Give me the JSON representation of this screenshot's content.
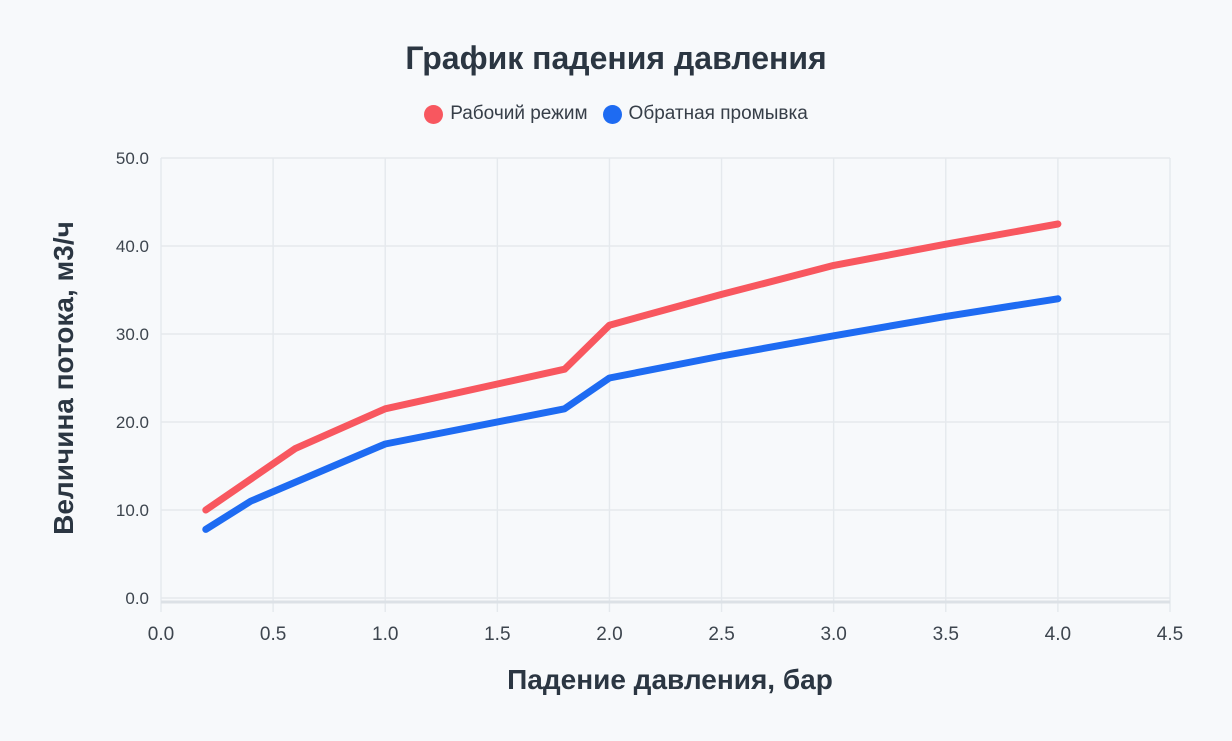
{
  "chart_data": {
    "type": "line",
    "title": "График падения давления",
    "xlabel": "Падение давления, бар",
    "ylabel": "Величина потока, м3/ч",
    "xlim": [
      0,
      4.5
    ],
    "ylim": [
      0,
      50
    ],
    "x_ticks": [
      "0.0",
      "0.5",
      "1.0",
      "1.5",
      "2.0",
      "2.5",
      "3.0",
      "3.5",
      "4.0",
      "4.5"
    ],
    "y_ticks": [
      "0.0",
      "10.0",
      "20.0",
      "30.0",
      "40.0",
      "50.0"
    ],
    "grid": true,
    "legend_position": "top-center",
    "series": [
      {
        "name": "Рабочий режим",
        "color": "#f8575f",
        "points": [
          [
            0.2,
            10.0
          ],
          [
            0.6,
            17.0
          ],
          [
            1.0,
            21.5
          ],
          [
            1.8,
            26.0
          ],
          [
            2.0,
            31.0
          ],
          [
            2.5,
            34.5
          ],
          [
            3.0,
            37.8
          ],
          [
            3.5,
            40.2
          ],
          [
            4.0,
            42.5
          ]
        ]
      },
      {
        "name": "Обратная промывка",
        "color": "#1e6bf2",
        "points": [
          [
            0.2,
            7.8
          ],
          [
            0.4,
            11.0
          ],
          [
            1.0,
            17.5
          ],
          [
            1.8,
            21.5
          ],
          [
            2.0,
            25.0
          ],
          [
            2.5,
            27.5
          ],
          [
            3.0,
            29.8
          ],
          [
            3.5,
            32.0
          ],
          [
            4.0,
            34.0
          ]
        ]
      }
    ],
    "colors": {
      "background": "#f7f9fb",
      "grid": "#e5e9ed",
      "axis_border": "#dce1e6",
      "title_text": "#2b3642",
      "x_tick_text": "#3d454e",
      "y_tick_text": "#3d454e",
      "legend_text": "#363e48"
    }
  }
}
